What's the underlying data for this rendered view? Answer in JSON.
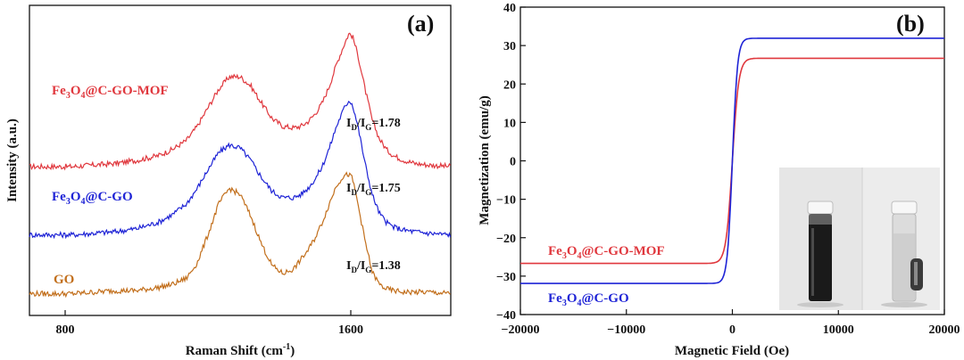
{
  "colors": {
    "red": "#e0383e",
    "blue": "#1f24d6",
    "brown": "#c26f1c",
    "axis": "#111111"
  },
  "chart_data": [
    {
      "type": "line",
      "panel": "(a)",
      "xlabel": "Raman Shift (cm-1)",
      "xlabel_main": "Raman Shift (cm",
      "xlabel_sup": "-1",
      "xlabel_end": ")",
      "ylabel": "Intensity (a.u.)",
      "xlim": [
        700,
        1880
      ],
      "x_ticks": [
        800,
        1600
      ],
      "x_tick_labels": [
        "800",
        "1600"
      ],
      "series": [
        {
          "key": "mof",
          "name_parts": {
            "a": "Fe",
            "s1": "3",
            "b": "O",
            "s2": "4",
            "c": "@C-GO-MOF"
          },
          "color": "red",
          "ratio": {
            "p1": "I",
            "s1": "D",
            "p2": "/I",
            "s2": "G",
            "p3": "=1.78"
          },
          "x": [
            700,
            760,
            820,
            880,
            940,
            1000,
            1060,
            1100,
            1140,
            1170,
            1200,
            1230,
            1260,
            1290,
            1320,
            1350,
            1380,
            1410,
            1440,
            1460,
            1480,
            1500,
            1520,
            1540,
            1560,
            1580,
            1595,
            1605,
            1620,
            1640,
            1660,
            1680,
            1700,
            1720,
            1750,
            1780,
            1820,
            1880
          ],
          "y": [
            0.86,
            0.86,
            0.86,
            0.87,
            0.88,
            0.9,
            0.93,
            0.97,
            1.03,
            1.12,
            1.24,
            1.36,
            1.44,
            1.44,
            1.38,
            1.27,
            1.17,
            1.12,
            1.11,
            1.12,
            1.15,
            1.2,
            1.27,
            1.38,
            1.52,
            1.64,
            1.72,
            1.7,
            1.58,
            1.36,
            1.16,
            1.04,
            0.97,
            0.93,
            0.9,
            0.88,
            0.87,
            0.86
          ]
        },
        {
          "key": "go_c",
          "name_parts": {
            "a": "Fe",
            "s1": "3",
            "b": "O",
            "s2": "4",
            "c": "@C-GO"
          },
          "color": "blue",
          "ratio": {
            "p1": "I",
            "s1": "D",
            "p2": "/I",
            "s2": "G",
            "p3": "=1.75"
          },
          "x": [
            700,
            760,
            820,
            880,
            940,
            1000,
            1060,
            1100,
            1140,
            1170,
            1200,
            1230,
            1260,
            1290,
            1320,
            1350,
            1380,
            1410,
            1440,
            1460,
            1480,
            1500,
            1520,
            1540,
            1560,
            1580,
            1595,
            1605,
            1620,
            1640,
            1660,
            1680,
            1700,
            1720,
            1750,
            1780,
            1820,
            1880
          ],
          "y": [
            0.42,
            0.42,
            0.42,
            0.43,
            0.44,
            0.46,
            0.5,
            0.55,
            0.62,
            0.72,
            0.84,
            0.95,
            1.0,
            0.98,
            0.9,
            0.79,
            0.7,
            0.66,
            0.66,
            0.68,
            0.72,
            0.78,
            0.86,
            0.98,
            1.12,
            1.23,
            1.29,
            1.26,
            1.12,
            0.88,
            0.68,
            0.56,
            0.5,
            0.47,
            0.45,
            0.44,
            0.43,
            0.42
          ]
        },
        {
          "key": "go",
          "name_parts": {
            "a": "GO",
            "s1": "",
            "b": "",
            "s2": "",
            "c": ""
          },
          "color": "brown",
          "ratio": {
            "p1": "I",
            "s1": "D",
            "p2": "/I",
            "s2": "G",
            "p3": "=1.38"
          },
          "x": [
            700,
            760,
            820,
            880,
            940,
            1000,
            1060,
            1100,
            1140,
            1170,
            1200,
            1230,
            1260,
            1290,
            1320,
            1350,
            1380,
            1410,
            1440,
            1460,
            1480,
            1500,
            1520,
            1540,
            1560,
            1580,
            1595,
            1605,
            1620,
            1640,
            1660,
            1680,
            1700,
            1720,
            1750,
            1780,
            1820,
            1880
          ],
          "y": [
            0.04,
            0.04,
            0.04,
            0.05,
            0.06,
            0.06,
            0.08,
            0.1,
            0.14,
            0.24,
            0.42,
            0.62,
            0.72,
            0.68,
            0.54,
            0.36,
            0.22,
            0.17,
            0.2,
            0.26,
            0.32,
            0.4,
            0.5,
            0.62,
            0.74,
            0.8,
            0.81,
            0.78,
            0.62,
            0.38,
            0.18,
            0.1,
            0.07,
            0.06,
            0.05,
            0.05,
            0.05,
            0.04
          ]
        }
      ]
    },
    {
      "type": "line",
      "panel": "(b)",
      "xlabel": "Magnetic Field (Oe)",
      "ylabel": "Magnetization (emu/g)",
      "xlim": [
        -20000,
        20000
      ],
      "ylim": [
        -40,
        40
      ],
      "x_ticks": [
        -20000,
        -10000,
        0,
        10000,
        20000
      ],
      "x_tick_labels": [
        "−20000",
        "−10000",
        "0",
        "10000",
        "20000"
      ],
      "y_ticks": [
        -40,
        -30,
        -20,
        -10,
        0,
        10,
        20,
        30,
        40
      ],
      "y_tick_labels": [
        "−40",
        "−30",
        "−20",
        "−10",
        "0",
        "10",
        "20",
        "30",
        "40"
      ],
      "series": [
        {
          "key": "mof",
          "name_parts": {
            "a": "Fe",
            "s1": "3",
            "b": "O",
            "s2": "4",
            "c": "@C-GO-MOF"
          },
          "color": "red",
          "ms": 26.7,
          "h0": 600
        },
        {
          "key": "go_c",
          "name_parts": {
            "a": "Fe",
            "s1": "3",
            "b": "O",
            "s2": "4",
            "c": "@C-GO"
          },
          "color": "blue",
          "ms": 31.9,
          "h0": 480
        }
      ],
      "inset": "photo of two vials: dark Fe3O4 dispersion and clear liquid with magnet attached"
    }
  ]
}
